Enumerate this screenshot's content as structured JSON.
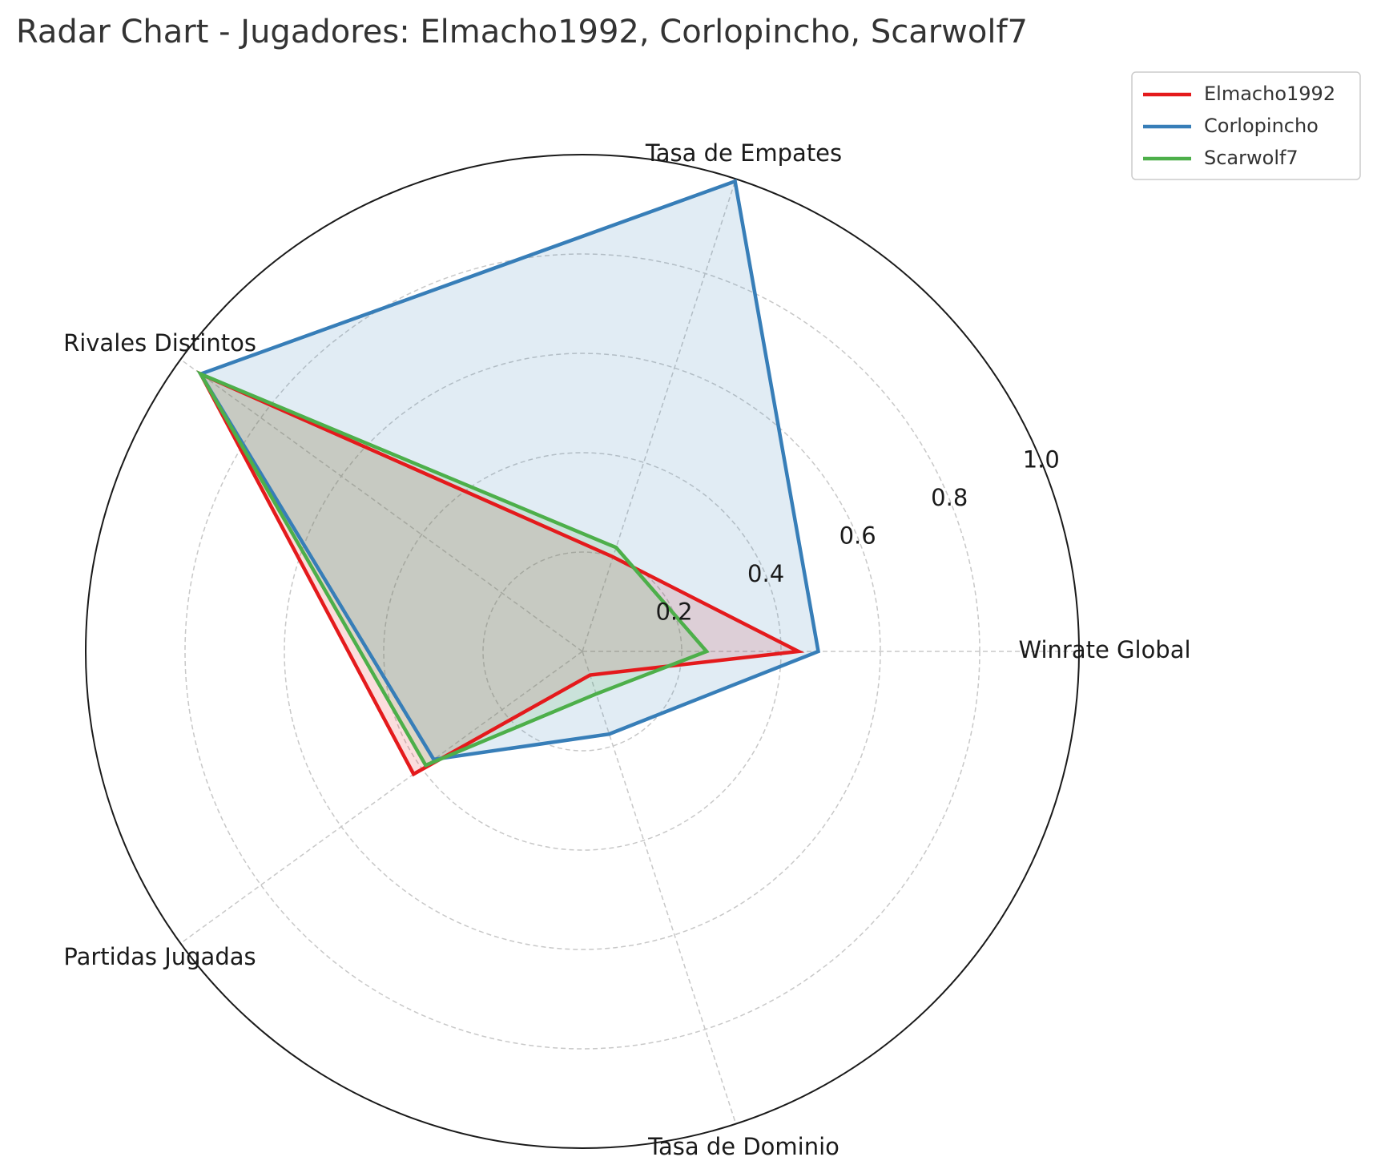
{
  "chart_data": {
    "type": "radar",
    "title": "Radar Chart - Jugadores: Elmacho1992, Corlopincho, Scarwolf7",
    "axes": [
      "Winrate Global",
      "Tasa de Empates",
      "Rivales Distintos",
      "Partidas Jugadas",
      "Tasa de Dominio"
    ],
    "rlim": [
      0,
      1.0
    ],
    "rticks": [
      0.2,
      0.4,
      0.6,
      0.8,
      1.0
    ],
    "rtick_labels": [
      "0.2",
      "0.4",
      "0.6",
      "0.8",
      "1.0"
    ],
    "grid": true,
    "legend_position": "top-right",
    "series": [
      {
        "name": "Elmacho1992",
        "color": "#e41a1c",
        "values": [
          0.435,
          0.2,
          0.95,
          0.42,
          0.05
        ]
      },
      {
        "name": "Corlopincho",
        "color": "#377eb8",
        "values": [
          0.475,
          0.995,
          0.95,
          0.37,
          0.175
        ]
      },
      {
        "name": "Scarwolf7",
        "color": "#4daf4a",
        "values": [
          0.25,
          0.22,
          0.95,
          0.39,
          0.09
        ]
      }
    ]
  }
}
